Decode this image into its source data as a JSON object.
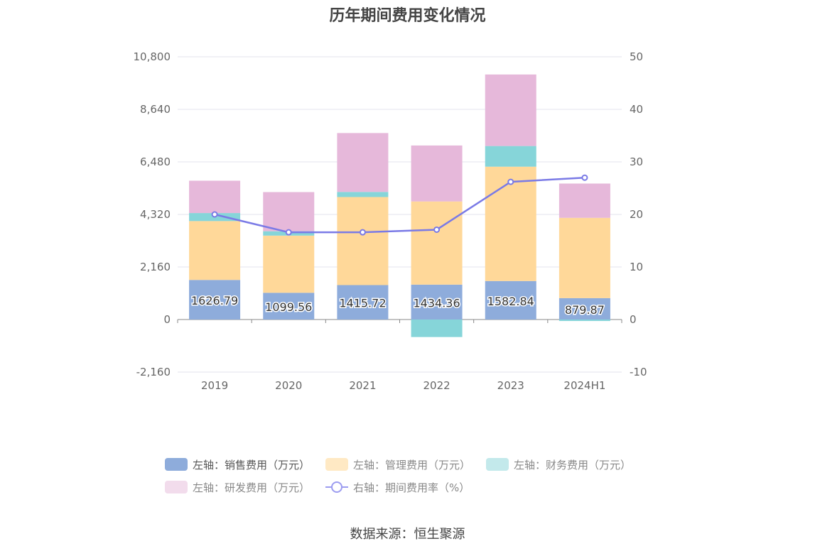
{
  "chart_data": {
    "type": "bar",
    "title": "历年期间费用变化情况",
    "categories": [
      "2019",
      "2020",
      "2021",
      "2022",
      "2023",
      "2024H1"
    ],
    "left_axis": {
      "ticks": [
        "10,800",
        "8,640",
        "6,480",
        "4,320",
        "2,160",
        "0",
        "-2,160"
      ],
      "ylim": [
        -2160,
        10800
      ]
    },
    "right_axis": {
      "ticks": [
        "50",
        "40",
        "30",
        "20",
        "10",
        "0",
        "-10"
      ],
      "ylim": [
        -10,
        50
      ]
    },
    "series": [
      {
        "name": "左轴：销售费用（万元）",
        "color": "#8eacdb",
        "values": [
          1626.79,
          1099.56,
          1415.72,
          1434.36,
          1582.84,
          879.87
        ]
      },
      {
        "name": "左轴：管理费用（万元）",
        "color": "#ffd899",
        "values": [
          2420,
          2350,
          3620,
          3420,
          4700,
          3300
        ]
      },
      {
        "name": "左轴：财务费用（万元）",
        "color": "#86d5d9",
        "values": [
          330,
          180,
          210,
          -720,
          850,
          -60
        ]
      },
      {
        "name": "左轴：研发费用（万元）",
        "color": "#e6b8da",
        "values": [
          1330,
          1610,
          2420,
          2300,
          2940,
          1410
        ]
      }
    ],
    "data_labels": [
      "1626.79",
      "1099.56",
      "1415.72",
      "1434.36",
      "1582.84",
      "879.87"
    ],
    "line_series": {
      "name": "右轴：期间费用率（%）",
      "color": "#7a7ae6",
      "values": [
        20.0,
        16.6,
        16.6,
        17.1,
        26.2,
        27.0
      ]
    }
  },
  "legend": {
    "sales": "左轴：销售费用（万元）",
    "admin": "左轴：管理费用（万元）",
    "finance": "左轴：财务费用（万元）",
    "rnd": "左轴：研发费用（万元）",
    "rate": "右轴：期间费用率（%）"
  },
  "source": "数据来源：恒生聚源"
}
